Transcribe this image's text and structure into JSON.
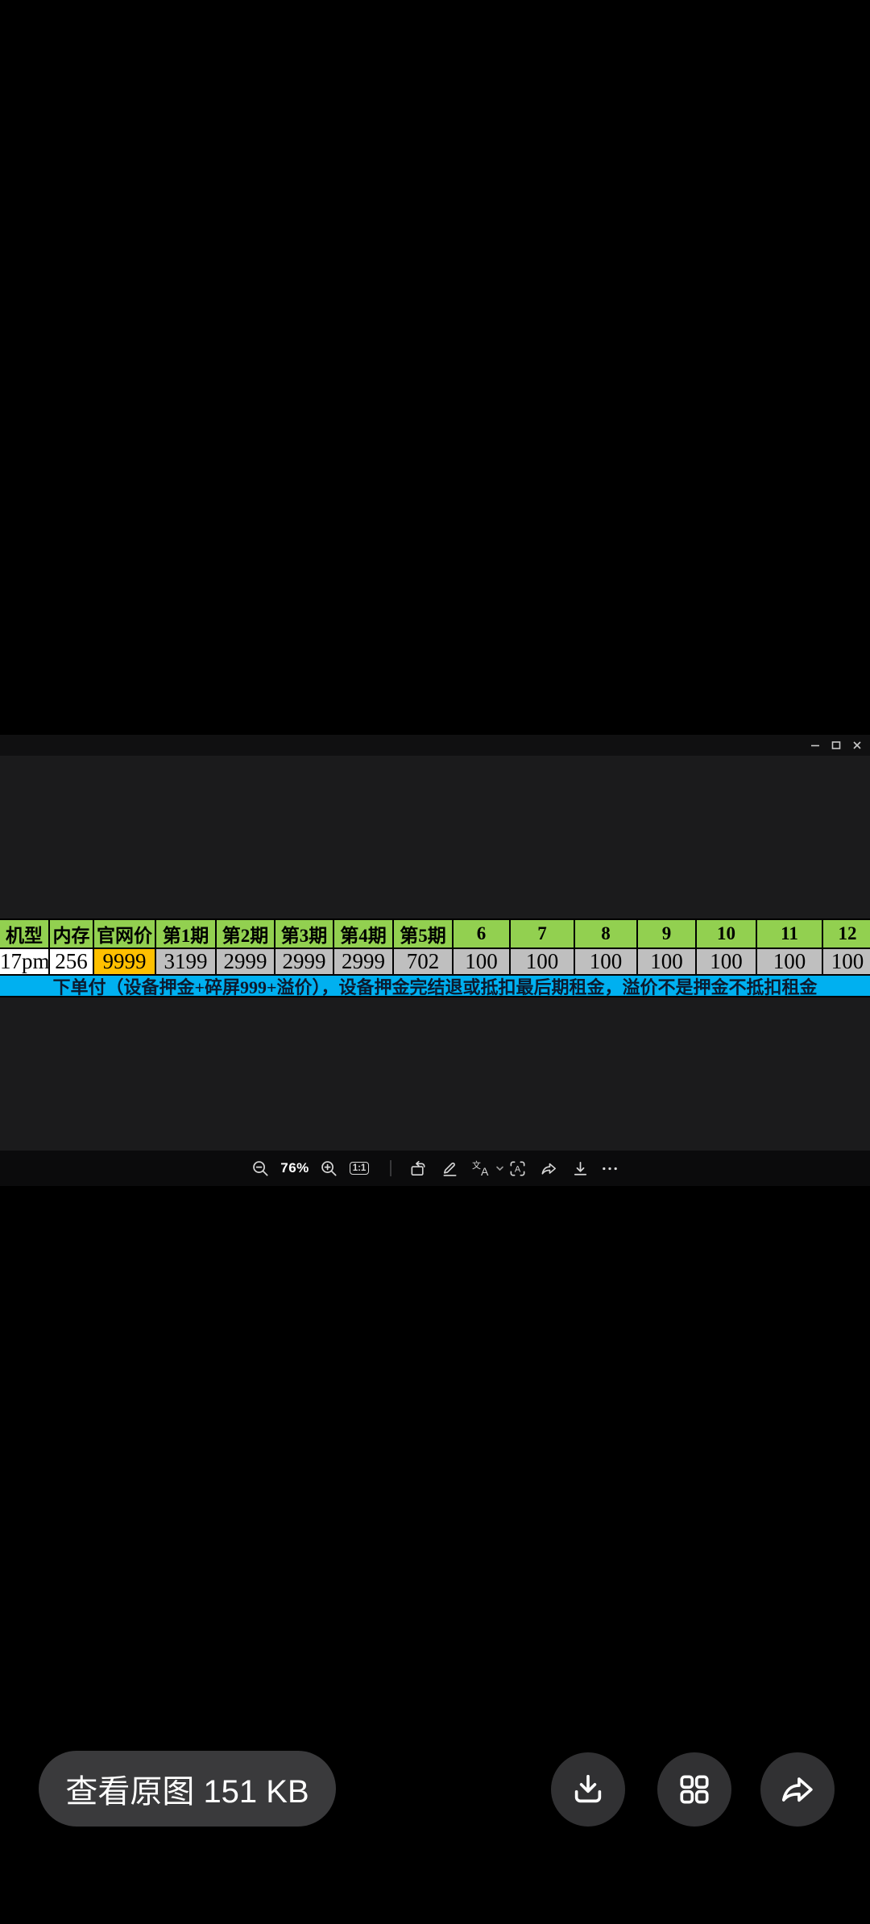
{
  "window": {
    "controls": {
      "minimize": "minimize-window",
      "maximize": "maximize-window",
      "close": "close-window"
    }
  },
  "viewer": {
    "zoom_level": "76%",
    "actual_size_label": "1:1",
    "toolbar_icons": [
      "zoom-out-icon",
      "zoom-in-icon",
      "actual-size-icon",
      "rotate-icon",
      "edit-pencil-icon",
      "translate-icon",
      "chevron-down-icon",
      "ocr-scan-icon",
      "forward-arrow-icon",
      "download-icon",
      "more-ellipsis-icon"
    ]
  },
  "table": {
    "header": [
      "机型",
      "内存",
      "官网价",
      "第1期",
      "第2期",
      "第3期",
      "第4期",
      "第5期",
      "6",
      "7",
      "8",
      "9",
      "10",
      "11",
      "12"
    ],
    "row": [
      "17pm",
      "256",
      "9999",
      "3199",
      "2999",
      "2999",
      "2999",
      "702",
      "100",
      "100",
      "100",
      "100",
      "100",
      "100",
      "100"
    ],
    "row_styles": [
      "white",
      "white",
      "orange",
      "gray",
      "gray",
      "gray",
      "gray",
      "gray",
      "gray",
      "gray",
      "gray",
      "gray",
      "gray",
      "gray",
      "gray"
    ],
    "banner": "下单付（设备押金+碎屏999+溢价），设备押金完结退或抵扣最后期租金，溢价不是押金不抵扣租金",
    "colors": {
      "header_bg": "#92D050",
      "highlight_bg": "#FFC000",
      "cell_bg": "#BFBFBF",
      "plain_bg": "#FFFFFF",
      "banner_bg": "#00B0F0"
    }
  },
  "bottom": {
    "view_original_label": "查看原图 151 KB",
    "icons": [
      "download-icon",
      "apps-grid-icon",
      "share-forward-icon"
    ]
  }
}
